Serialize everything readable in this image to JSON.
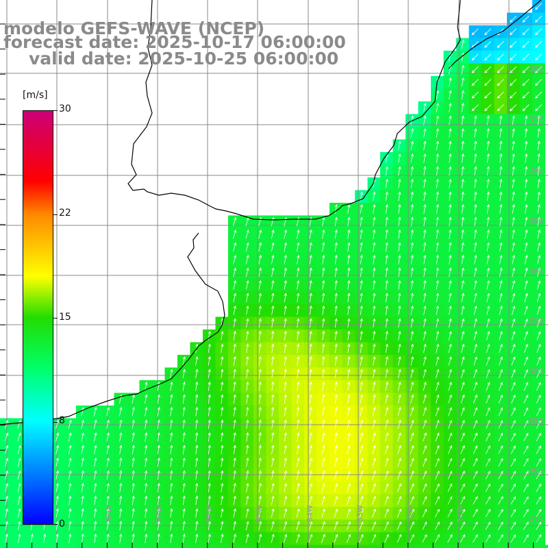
{
  "map": {
    "title_line1": "modelo GEFS-WAVE (NCEP)",
    "title_line2": "forecast date: 2025-10-17 06:00:00",
    "title_line3": "valid date: 2025-10-25 06:00:00",
    "variable": "wind speed and direction",
    "extent": {
      "lon_min": -59.6,
      "lon_max": -50.4,
      "lat_min": -41.6,
      "lat_max": -31.3
    },
    "grid_spacing_deg": 0.5,
    "longitude_labels": [
      "58W",
      "57W",
      "56W",
      "55W",
      "54W",
      "53W",
      "52W",
      "51W"
    ],
    "latitude_labels": [
      "32S",
      "33S",
      "34S",
      "35S",
      "36S",
      "37S",
      "38S",
      "39S",
      "40S",
      "41S"
    ],
    "colors": {
      "grid": "#888888",
      "coast": "#000000",
      "arrows": "#ffffff",
      "land": "#ffffff",
      "title": "#8a8a8a"
    }
  },
  "colorbar": {
    "unit": "[m/s]",
    "min": 0,
    "max": 30,
    "tick_labels": [
      "30",
      "22",
      "15",
      "8",
      "0"
    ],
    "stops": [
      {
        "value": 0,
        "color": "#0000ff"
      },
      {
        "value": 8,
        "color": "#00ffff"
      },
      {
        "value": 11,
        "color": "#00ff66"
      },
      {
        "value": 15,
        "color": "#22dd00"
      },
      {
        "value": 18,
        "color": "#ffff00"
      },
      {
        "value": 22,
        "color": "#ff8800"
      },
      {
        "value": 25,
        "color": "#ff0000"
      },
      {
        "value": 30,
        "color": "#cc0077"
      }
    ]
  }
}
